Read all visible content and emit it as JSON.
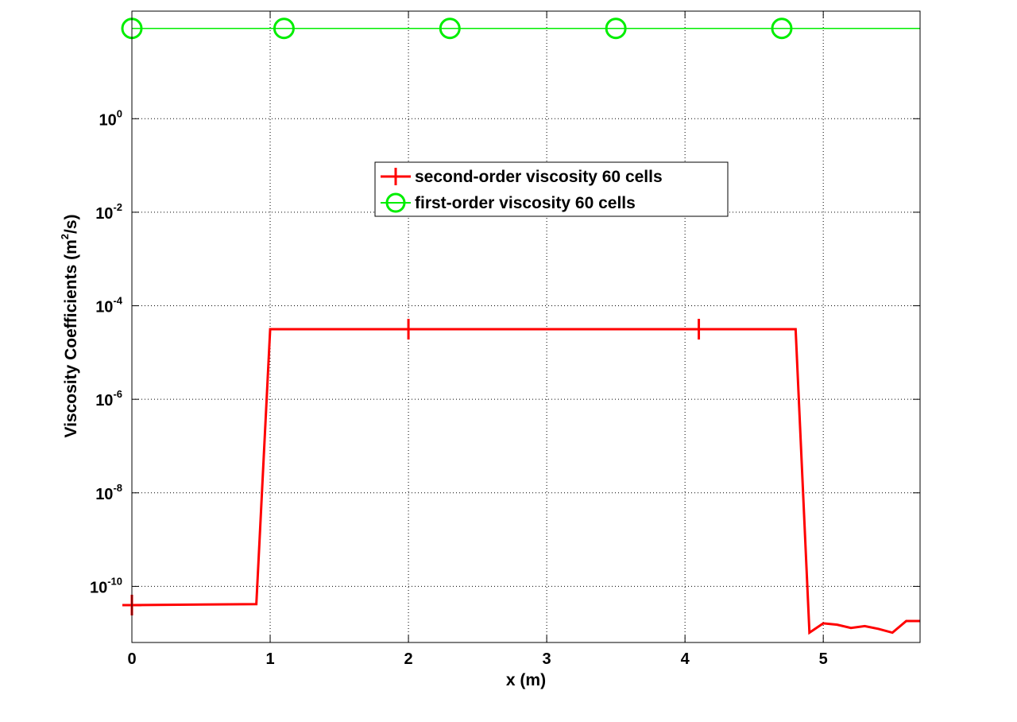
{
  "chart_data": {
    "type": "line",
    "title": "",
    "xlabel": "x (m)",
    "ylabel": "Viscosity Coefficients (m",
    "ylabel_sup": "2",
    "ylabel_suffix": "/s)",
    "xlim": [
      0,
      5.7
    ],
    "ylim_log10": [
      -11.2,
      2.3
    ],
    "y_scale": "log",
    "grid": true,
    "legend_position": "upper-center",
    "x_ticks": [
      "0",
      "1",
      "2",
      "3",
      "4",
      "5"
    ],
    "y_ticks": [
      {
        "base": "10",
        "exp": "0"
      },
      {
        "base": "10",
        "exp": "-2"
      },
      {
        "base": "10",
        "exp": "-4"
      },
      {
        "base": "10",
        "exp": "-6"
      },
      {
        "base": "10",
        "exp": "-8"
      },
      {
        "base": "10",
        "exp": "-10"
      }
    ],
    "series": [
      {
        "name": "second-order viscosity 60 cells",
        "color": "#ff0000",
        "marker": "plus",
        "x": [
          0,
          0.9,
          1.0,
          2.0,
          3.0,
          4.1,
          4.8,
          4.9,
          5.0,
          5.1,
          5.2,
          5.3,
          5.4,
          5.5,
          5.6,
          5.7
        ],
        "y_log10": [
          -10.4,
          -10.38,
          -4.5,
          -4.5,
          -4.5,
          -4.5,
          -4.5,
          -10.99,
          -10.79,
          -10.82,
          -10.89,
          -10.85,
          -10.91,
          -10.99,
          -10.74,
          -10.74
        ],
        "marker_x": [
          0,
          2.0,
          4.1
        ]
      },
      {
        "name": "first-order viscosity 60 cells",
        "color": "#00ee00",
        "marker": "circle",
        "x": [
          0,
          5.7
        ],
        "y_log10": [
          1.93,
          1.93
        ],
        "marker_x": [
          0,
          1.1,
          2.3,
          3.5,
          4.7
        ]
      }
    ]
  }
}
